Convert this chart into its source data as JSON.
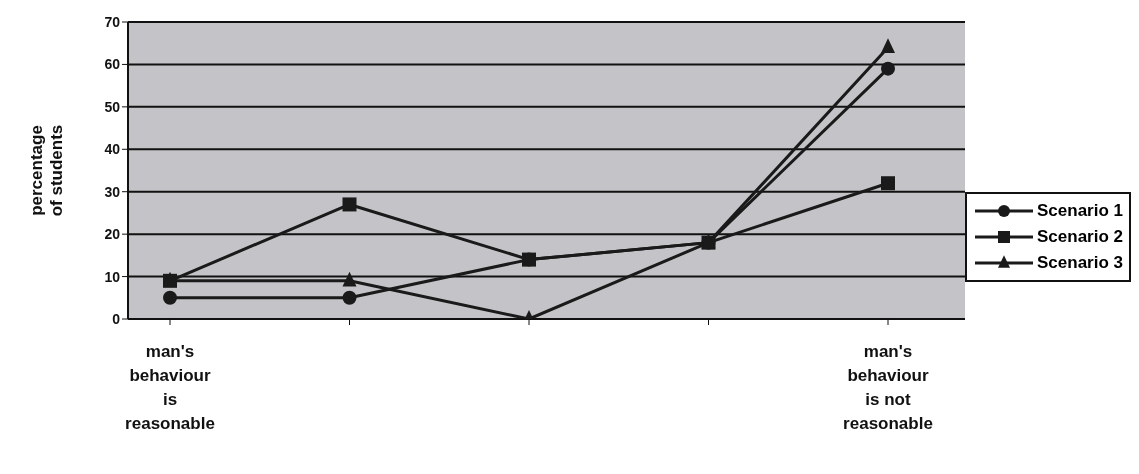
{
  "chart_data": {
    "type": "line",
    "ylabel": "percentage of students",
    "categories": [
      "man's behaviour is reasonable",
      null,
      null,
      null,
      "man's behaviour is not reasonable"
    ],
    "series": [
      {
        "name": "Scenario 1",
        "color": "#1a1a1a",
        "marker": "circle",
        "values": [
          5,
          5,
          14,
          18,
          59
        ]
      },
      {
        "name": "Scenario 2",
        "color": "#1a1a1a",
        "marker": "square",
        "values": [
          9,
          27,
          14,
          18,
          32
        ]
      },
      {
        "name": "Scenario 3",
        "color": "#1a1a1a",
        "marker": "triangle",
        "values": [
          9,
          9,
          0,
          18,
          64
        ]
      }
    ],
    "ylim": [
      0,
      70
    ],
    "yticks": [
      0,
      10,
      20,
      30,
      40,
      50,
      60,
      70
    ],
    "grid": "y",
    "legend": "right"
  }
}
